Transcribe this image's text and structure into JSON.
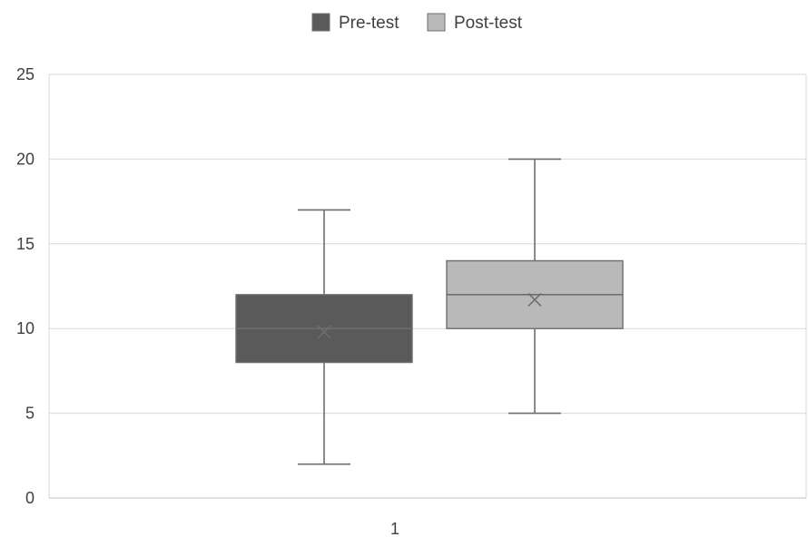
{
  "chart_data": {
    "type": "boxplot",
    "categories": [
      "1"
    ],
    "ylim": [
      0,
      25
    ],
    "y_ticks": [
      0,
      5,
      10,
      15,
      20,
      25
    ],
    "grid": true,
    "legend_position": "top-center",
    "series": [
      {
        "name": "Pre-test",
        "color": "#5a5a5a",
        "min": 2,
        "q1": 8,
        "median": 10,
        "q3": 12,
        "max": 17,
        "mean": 9.8
      },
      {
        "name": "Post-test",
        "color": "#b9b9b9",
        "min": 5,
        "q1": 10,
        "median": 12,
        "q3": 14,
        "max": 20,
        "mean": 11.7
      }
    ]
  }
}
